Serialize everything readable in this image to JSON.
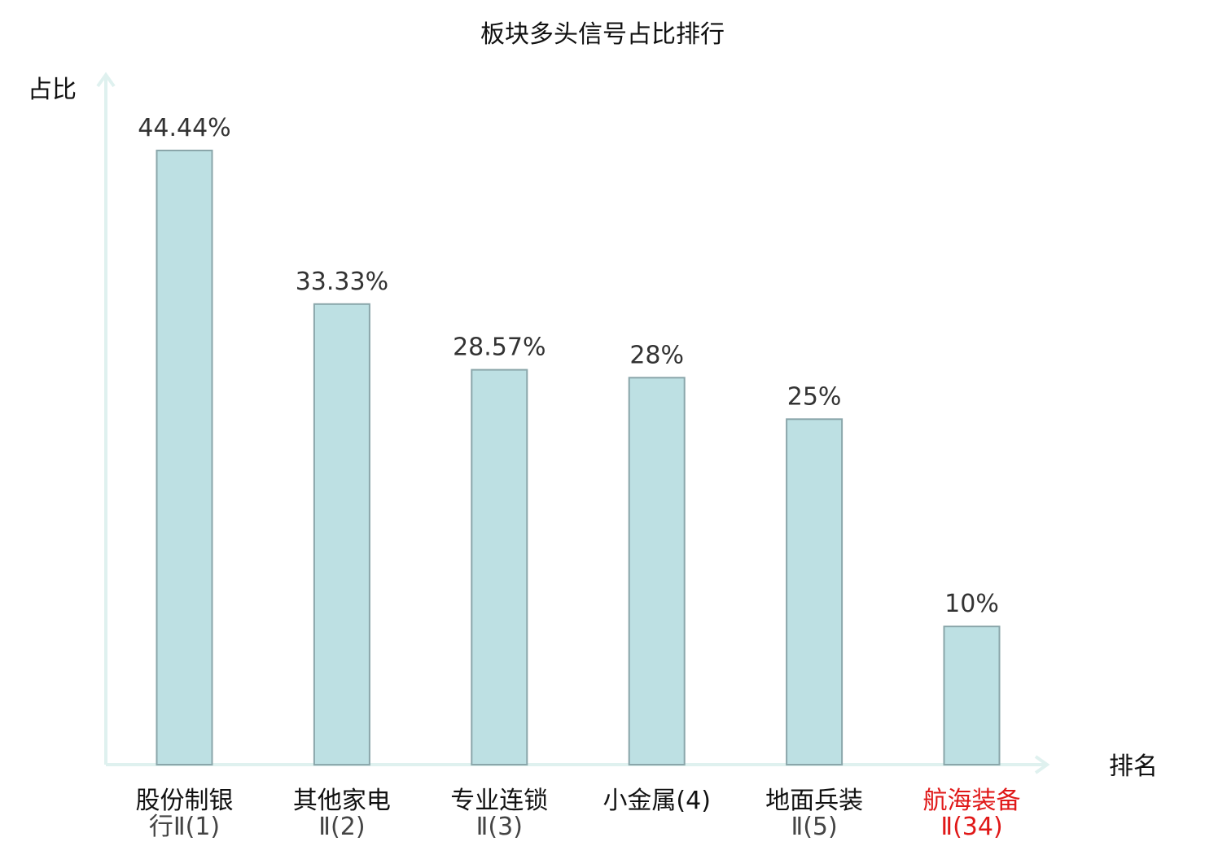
{
  "chart_data": {
    "type": "bar",
    "title": "板块多头信号占比排行",
    "ylabel": "占比",
    "xlabel": "排名",
    "ylim": [
      0,
      50
    ],
    "grid": false,
    "categories": [
      {
        "line1": "股份制银",
        "line2": "行Ⅱ(1)",
        "highlight": false
      },
      {
        "line1": "其他家电",
        "line2": "Ⅱ(2)",
        "highlight": false
      },
      {
        "line1": "专业连锁",
        "line2": "Ⅱ(3)",
        "highlight": false
      },
      {
        "line1": "小金属(4)",
        "line2": "",
        "highlight": false
      },
      {
        "line1": "地面兵装",
        "line2": "Ⅱ(5)",
        "highlight": false
      },
      {
        "line1": "航海装备",
        "line2": "Ⅱ(34)",
        "highlight": true
      }
    ],
    "values": [
      44.44,
      33.33,
      28.57,
      28,
      25,
      10
    ],
    "value_labels": [
      "44.44%",
      "33.33%",
      "28.57%",
      "28%",
      "25%",
      "10%"
    ],
    "colors": {
      "bar_fill": "#bde0e3",
      "bar_stroke": "#8aa6aa",
      "axis": "#dff1ef",
      "highlight": "#e01818"
    }
  }
}
